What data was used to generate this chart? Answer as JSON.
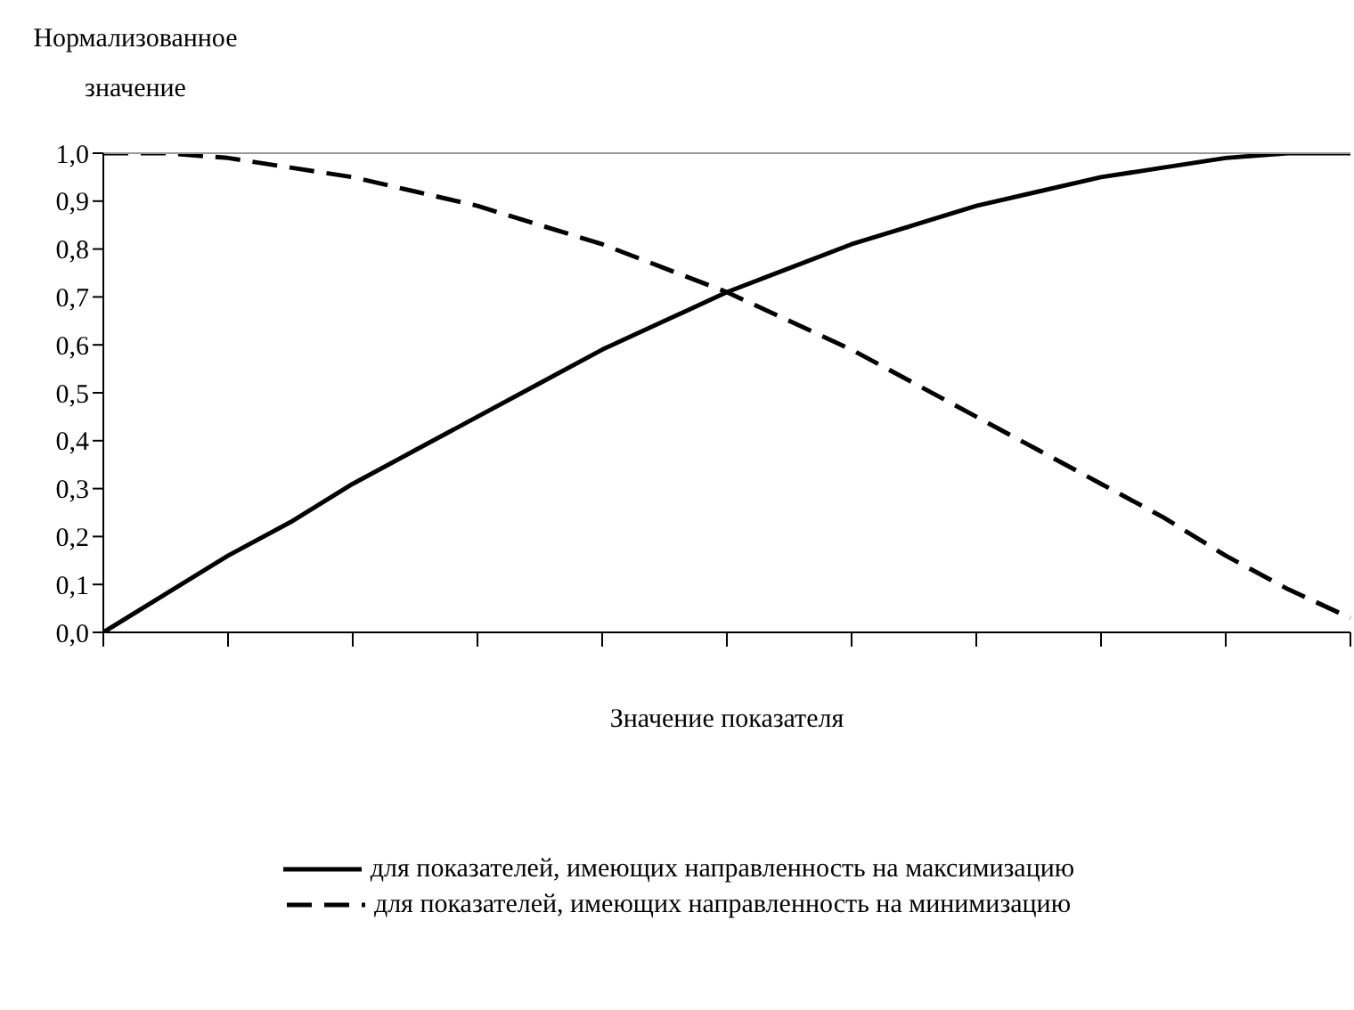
{
  "chart_data": {
    "type": "line",
    "ylabel": "Нормализованное значение",
    "xlabel": "Значение показателя",
    "categories": [
      null,
      null,
      null,
      null,
      null,
      null,
      null,
      null,
      null,
      null,
      null,
      null,
      null,
      null,
      null,
      null,
      null,
      null,
      null,
      null,
      null
    ],
    "series": [
      {
        "name": "для показателей, имеющих направленность на максимизацию",
        "color": "#000000",
        "line_style": "solid",
        "values": [
          0,
          0.08,
          0.16,
          0.23,
          0.31,
          0.38,
          0.45,
          0.52,
          0.59,
          0.65,
          0.71,
          0.76,
          0.81,
          0.85,
          0.89,
          0.92,
          0.95,
          0.97,
          0.99,
          1.0,
          1.0
        ]
      },
      {
        "name": "для показателей, имеющих направленность на минимизацию",
        "color": "#000000",
        "line_style": "dashed",
        "values": [
          1,
          1,
          0.99,
          0.97,
          0.95,
          0.92,
          0.89,
          0.85,
          0.81,
          0.76,
          0.71,
          0.65,
          0.59,
          0.52,
          0.45,
          0.38,
          0.31,
          0.24,
          0.16,
          0.09,
          0.03
        ]
      }
    ],
    "ylim": [
      0,
      1
    ],
    "yticks": [
      {
        "value": 0,
        "label": "0,0"
      },
      {
        "value": 0.1,
        "label": "0,1"
      },
      {
        "value": 0.2,
        "label": "0,2"
      },
      {
        "value": 0.3,
        "label": "0,3"
      },
      {
        "value": 0.4,
        "label": "0,4"
      },
      {
        "value": 0.5,
        "label": "0,5"
      },
      {
        "value": 0.6,
        "label": "0,6"
      },
      {
        "value": 0.7,
        "label": "0,7"
      },
      {
        "value": 0.8,
        "label": "0,8"
      },
      {
        "value": 0.9,
        "label": "0,9"
      },
      {
        "value": 1,
        "label": "1,0"
      }
    ],
    "tick_labels": "y",
    "legend": "bottom",
    "marker": "none",
    "grid": false
  }
}
